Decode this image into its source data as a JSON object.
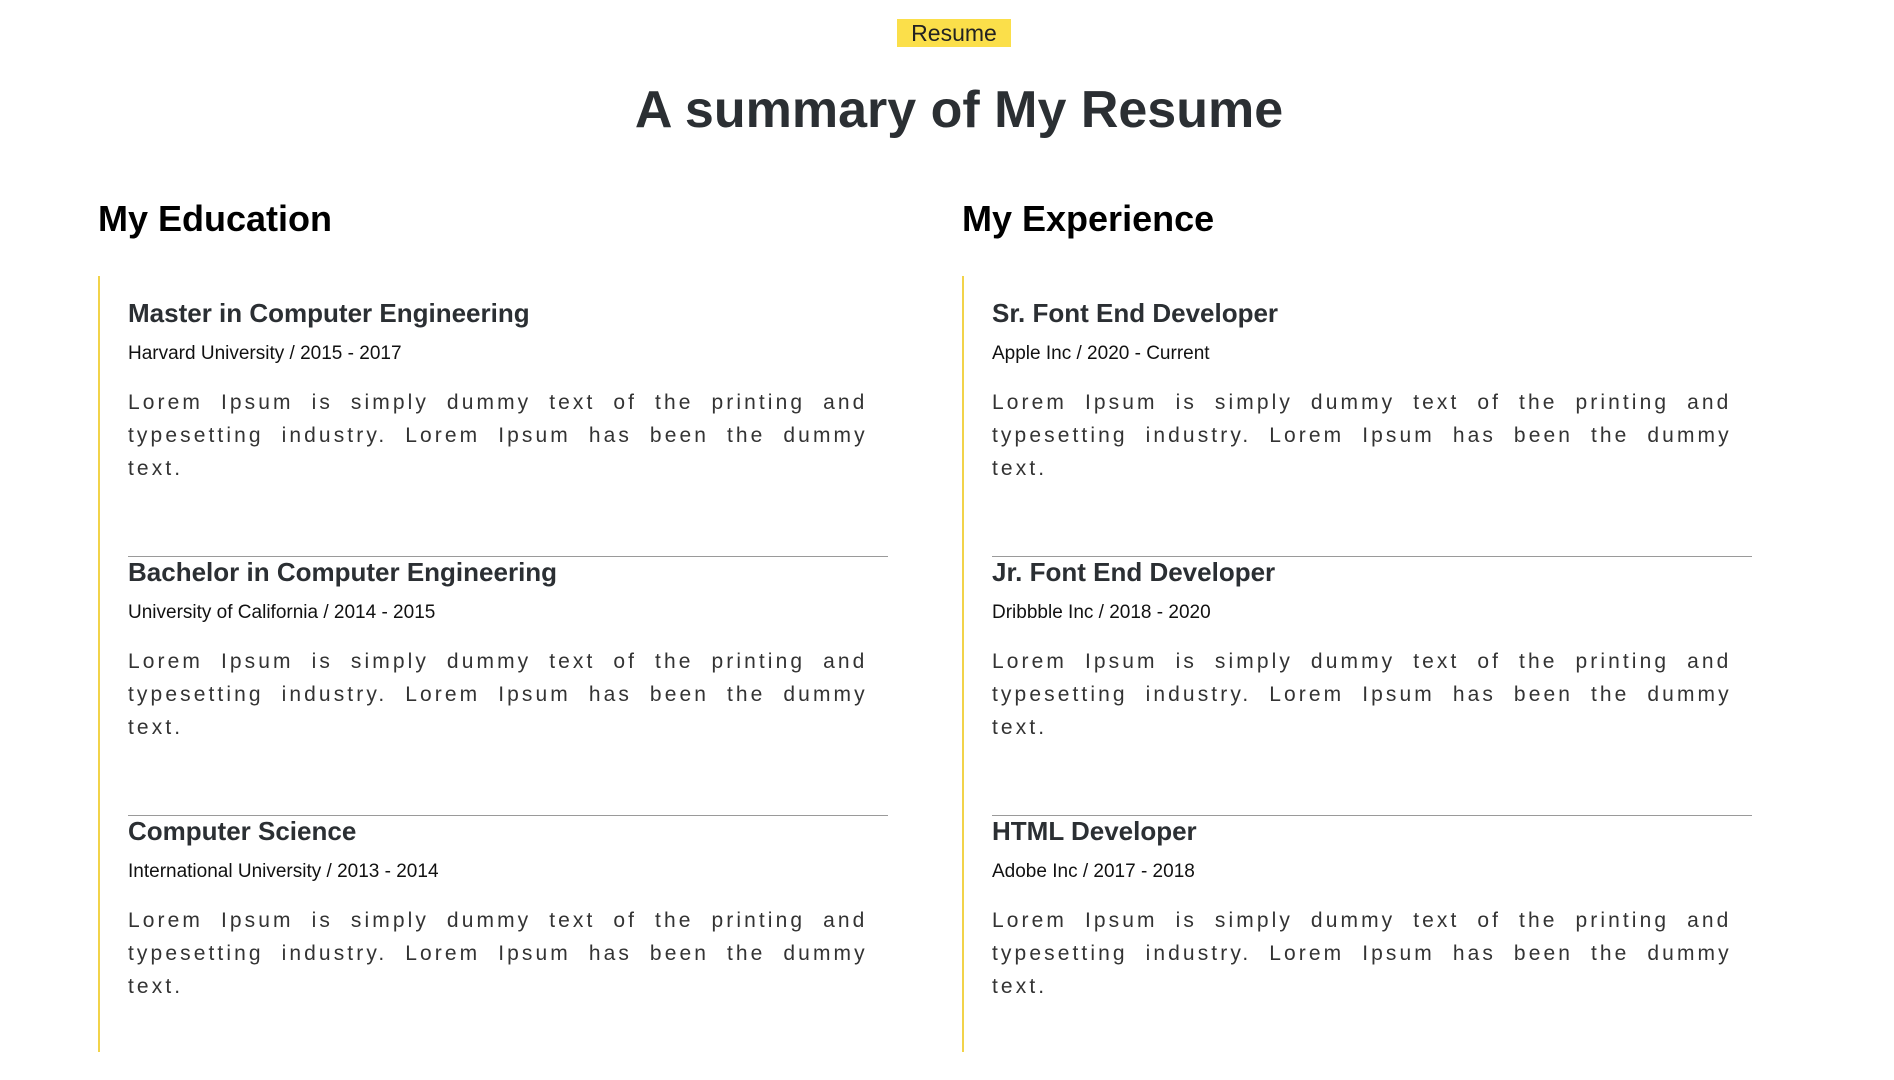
{
  "header": {
    "badge": "Resume",
    "title": "A summary of My Resume"
  },
  "education": {
    "title": "My Education",
    "items": [
      {
        "title": "Master in Computer Engineering",
        "meta": "Harvard University / 2015 - 2017",
        "description": "Lorem Ipsum is simply dummy text of the printing and typesetting industry. Lorem Ipsum has been the dummy text."
      },
      {
        "title": "Bachelor in Computer Engineering",
        "meta": "University of California / 2014 - 2015",
        "description": "Lorem Ipsum is simply dummy text of the printing and typesetting industry. Lorem Ipsum has been the dummy text."
      },
      {
        "title": "Computer Science",
        "meta": "International University / 2013 - 2014",
        "description": "Lorem Ipsum is simply dummy text of the printing and typesetting industry. Lorem Ipsum has been the dummy text."
      }
    ]
  },
  "experience": {
    "title": "My Experience",
    "items": [
      {
        "title": "Sr. Font End Developer",
        "meta": "Apple Inc / 2020 - Current",
        "description": "Lorem Ipsum is simply dummy text of the printing and typesetting industry. Lorem Ipsum has been the dummy text."
      },
      {
        "title": "Jr. Font End Developer",
        "meta": "Dribbble Inc / 2018 - 2020",
        "description": "Lorem Ipsum is simply dummy text of the printing and typesetting industry. Lorem Ipsum has been the dummy text."
      },
      {
        "title": "HTML Developer",
        "meta": "Adobe Inc / 2017 - 2018",
        "description": "Lorem Ipsum is simply dummy text of the printing and typesetting industry. Lorem Ipsum has been the dummy text."
      }
    ]
  },
  "colors": {
    "accent": "#fbdf4a",
    "timeline_line": "#f2d34a",
    "heading": "#2b2f33"
  }
}
